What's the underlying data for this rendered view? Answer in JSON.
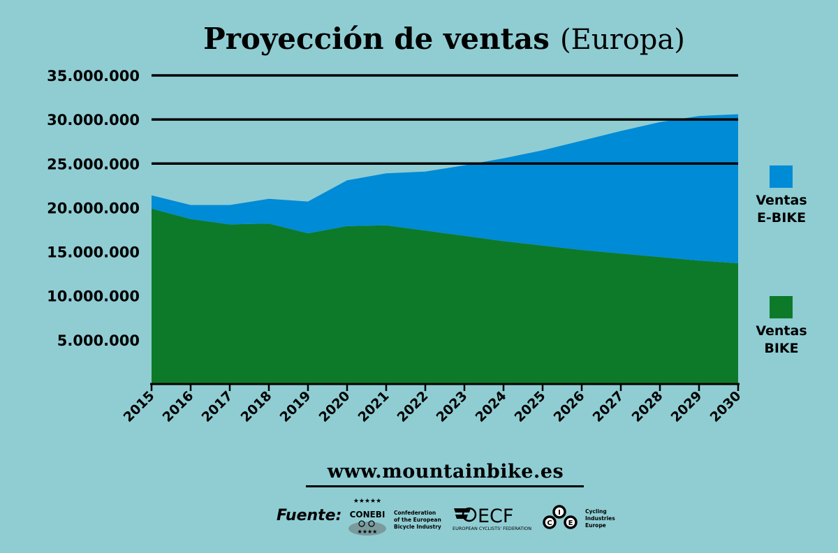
{
  "chart_data": {
    "type": "area",
    "title_bold": "Proyección de ventas",
    "title_light": "(Europa)",
    "x": [
      "2015",
      "2016",
      "2017",
      "2018",
      "2019",
      "2020",
      "2021",
      "2022",
      "2023",
      "2024",
      "2025",
      "2026",
      "2027",
      "2028",
      "2029",
      "2030"
    ],
    "series": [
      {
        "name": "Ventas BIKE",
        "color": "#0d7a2a",
        "values": [
          19900000,
          18700000,
          18100000,
          18200000,
          17100000,
          17900000,
          18000000,
          17400000,
          16800000,
          16200000,
          15700000,
          15200000,
          14800000,
          14400000,
          14000000,
          13700000
        ]
      },
      {
        "name": "Ventas E-BIKE",
        "color": "#008bd6",
        "values": [
          1500000,
          1600000,
          2200000,
          2800000,
          3600000,
          5200000,
          5900000,
          6700000,
          8000000,
          9400000,
          10800000,
          12400000,
          13900000,
          15300000,
          16400000,
          16900000
        ]
      }
    ],
    "stacked": true,
    "ylim": [
      0,
      35000000
    ],
    "yticks": [
      {
        "value": 5000000,
        "label": "5.000.000"
      },
      {
        "value": 10000000,
        "label": "10.000.000"
      },
      {
        "value": 15000000,
        "label": "15.000.000"
      },
      {
        "value": 20000000,
        "label": "20.000.000"
      },
      {
        "value": 25000000,
        "label": "25.000.000"
      },
      {
        "value": 30000000,
        "label": "30.000.000"
      },
      {
        "value": 35000000,
        "label": "35.000.000"
      }
    ],
    "gridlines_at": [
      25000000,
      30000000,
      35000000
    ],
    "legend": [
      {
        "line1": "Ventas",
        "line2": "E-BIKE",
        "color": "#008bd6"
      },
      {
        "line1": "Ventas",
        "line2": "BIKE",
        "color": "#0d7a2a"
      }
    ],
    "legend_position": "right"
  },
  "footer": {
    "url": "www.mountainbike.es",
    "source_label": "Fuente:"
  },
  "logos": {
    "conebi": {
      "name": "CONEBI",
      "desc": [
        "Confederation",
        "of the European",
        "Bicycle Industry"
      ]
    },
    "ecf": {
      "name": "ECF",
      "desc": "EUROPEAN CYCLISTS' FEDERATION"
    },
    "cie": {
      "letters": [
        "C",
        "I",
        "E"
      ],
      "desc": [
        "Cycling",
        "Industries",
        "Europe"
      ]
    }
  }
}
